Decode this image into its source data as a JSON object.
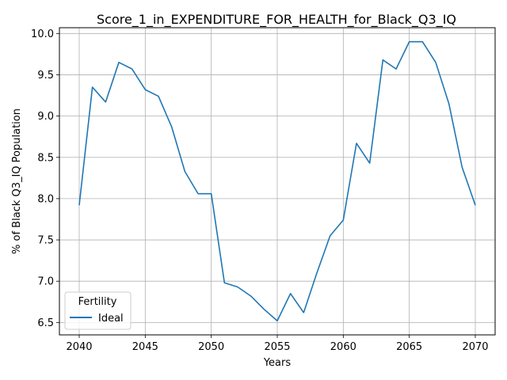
{
  "chart_data": {
    "type": "line",
    "title": "Score_1_in_EXPENDITURE_FOR_HEALTH_for_Black_Q3_IQ",
    "xlabel": "Years",
    "ylabel": "% of Black Q3_IQ Population",
    "xlim": [
      2038.5,
      2071.5
    ],
    "ylim": [
      6.35,
      10.07
    ],
    "xticks": [
      2040,
      2045,
      2050,
      2055,
      2060,
      2065,
      2070
    ],
    "yticks": [
      6.5,
      7.0,
      7.5,
      8.0,
      8.5,
      9.0,
      9.5,
      10.0
    ],
    "xtick_labels": [
      "2040",
      "2045",
      "2050",
      "2055",
      "2060",
      "2065",
      "2070"
    ],
    "ytick_labels": [
      "6.5",
      "7.0",
      "7.5",
      "8.0",
      "8.5",
      "9.0",
      "9.5",
      "10.0"
    ],
    "grid": true,
    "legend": {
      "title": "Fertility",
      "position": "lower-left"
    },
    "series": [
      {
        "name": "Ideal",
        "color": "#1f77b4",
        "x": [
          2040,
          2041,
          2042,
          2043,
          2044,
          2045,
          2046,
          2047,
          2048,
          2049,
          2050,
          2051,
          2052,
          2053,
          2054,
          2055,
          2056,
          2057,
          2058,
          2059,
          2060,
          2061,
          2062,
          2063,
          2064,
          2065,
          2066,
          2067,
          2068,
          2069,
          2070
        ],
        "y": [
          7.92,
          9.35,
          9.17,
          9.65,
          9.57,
          9.32,
          9.24,
          8.87,
          8.33,
          8.06,
          8.06,
          6.98,
          6.93,
          6.82,
          6.66,
          6.52,
          6.85,
          6.62,
          7.1,
          7.55,
          7.74,
          8.67,
          8.43,
          9.68,
          9.57,
          9.9,
          9.9,
          9.65,
          9.15,
          8.38,
          7.92
        ]
      }
    ]
  }
}
